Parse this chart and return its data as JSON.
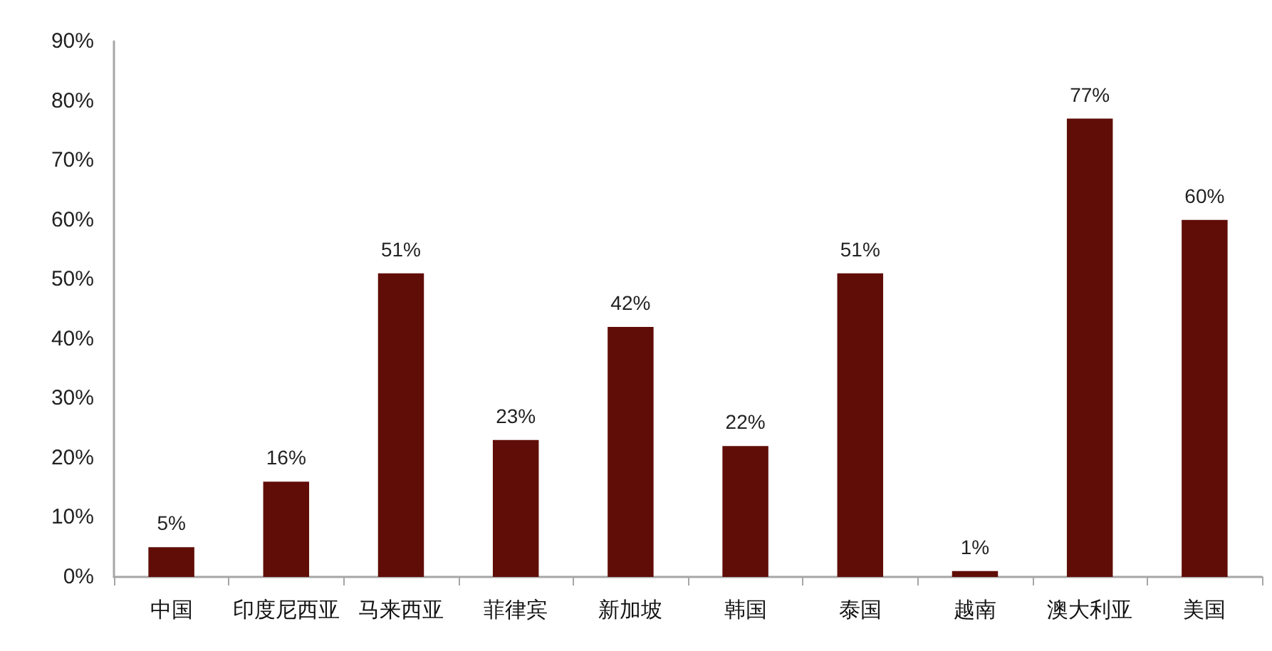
{
  "chart_data": {
    "type": "bar",
    "categories": [
      "中国",
      "印度尼西亚",
      "马来西亚",
      "菲律宾",
      "新加坡",
      "韩国",
      "泰国",
      "越南",
      "澳大利亚",
      "美国"
    ],
    "values": [
      5,
      16,
      51,
      23,
      42,
      22,
      51,
      1,
      77,
      60
    ],
    "value_labels": [
      "5%",
      "16%",
      "51%",
      "23%",
      "42%",
      "22%",
      "51%",
      "1%",
      "77%",
      "60%"
    ],
    "color": "#600d08",
    "ylim": [
      0,
      90
    ],
    "yticks": [
      {
        "value": 0,
        "label": "0%"
      },
      {
        "value": 10,
        "label": "10%"
      },
      {
        "value": 20,
        "label": "20%"
      },
      {
        "value": 30,
        "label": "30%"
      },
      {
        "value": 40,
        "label": "40%"
      },
      {
        "value": 50,
        "label": "50%"
      },
      {
        "value": 60,
        "label": "60%"
      },
      {
        "value": 70,
        "label": "70%"
      },
      {
        "value": 80,
        "label": "80%"
      },
      {
        "value": 90,
        "label": "90%"
      }
    ],
    "grid": false
  }
}
